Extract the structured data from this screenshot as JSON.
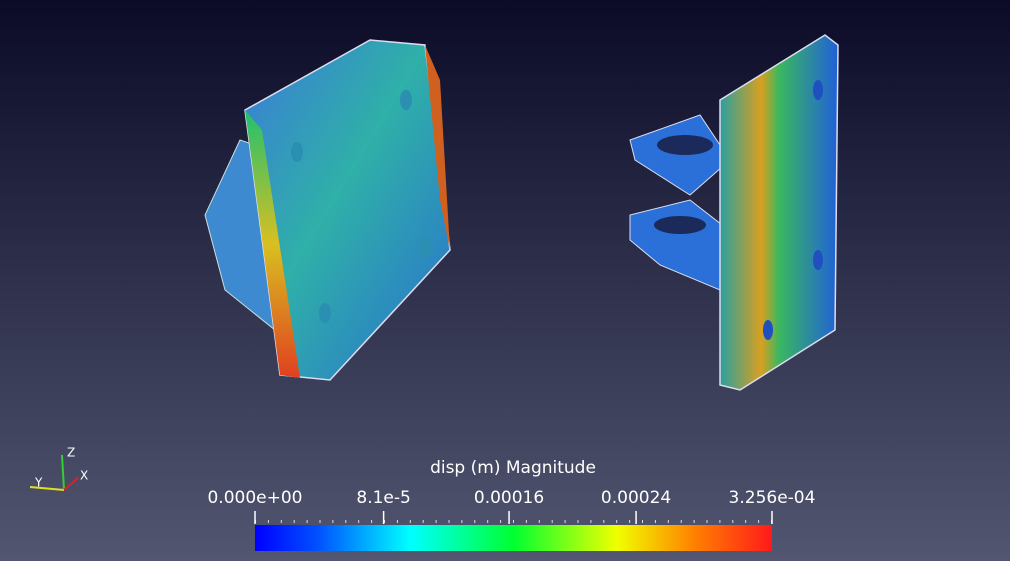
{
  "colorbar": {
    "title": "disp (m) Magnitude",
    "range": [
      0,
      0.0003256
    ],
    "ticks": [
      {
        "value": 0,
        "label": "0.000e+00"
      },
      {
        "value": 8.1e-05,
        "label": "8.1e-5"
      },
      {
        "value": 0.00016,
        "label": "0.00016"
      },
      {
        "value": 0.00024,
        "label": "0.00024"
      },
      {
        "value": 0.0003256,
        "label": "3.256e-04"
      }
    ]
  },
  "axes_triad": {
    "z": "Z",
    "y": "Y",
    "x": "X"
  }
}
